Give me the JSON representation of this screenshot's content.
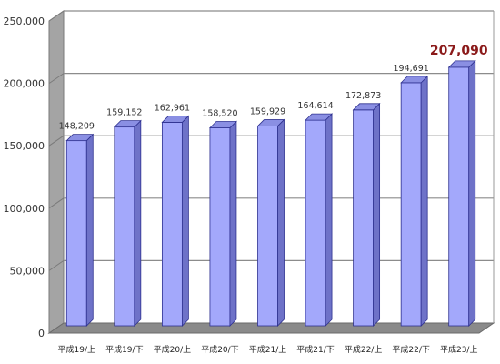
{
  "chart_data": {
    "type": "bar",
    "title": "",
    "xlabel": "",
    "ylabel": "",
    "categories": [
      "平成19/上",
      "平成19/下",
      "平成20/上",
      "平成20/下",
      "平成21/上",
      "平成21/下",
      "平成22/上",
      "平成22/下",
      "平成23/上"
    ],
    "values": [
      148209,
      159152,
      162961,
      158520,
      159929,
      164614,
      172873,
      194691,
      207090
    ],
    "data_labels": [
      "148,209",
      "159,152",
      "162,961",
      "158,520",
      "159,929",
      "164,614",
      "172,873",
      "194,691",
      "207,090"
    ],
    "highlight_index": 8,
    "ylim": [
      0,
      250000
    ],
    "yticks": [
      0,
      50000,
      100000,
      150000,
      200000,
      250000
    ],
    "ytick_labels": [
      "0",
      "50,000",
      "100,000",
      "150,000",
      "200,000",
      "250,000"
    ],
    "grid": true,
    "style": "3d",
    "colors": {
      "bar_front": "#a3a8fb",
      "bar_side": "#6e72c8",
      "bar_top": "#8a8fe3",
      "bar_outline": "#2e3190",
      "wall_side": "#a4a4a4",
      "floor": "#8a8a8a",
      "grid": "#8c8c8c",
      "highlight_label": "#8b1a1a"
    }
  }
}
